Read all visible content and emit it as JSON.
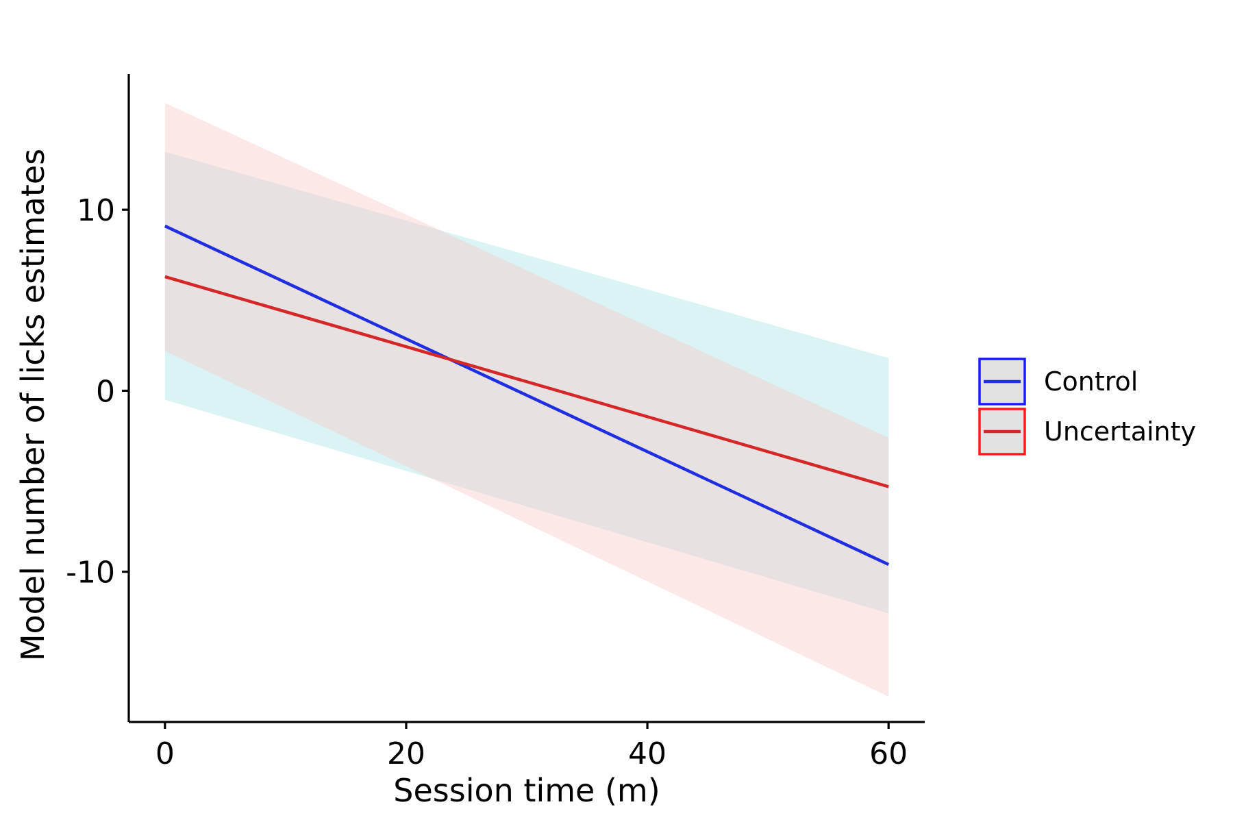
{
  "chart_data": {
    "type": "line",
    "title": "",
    "xlabel": "Session time (m)",
    "ylabel": "Model number of licks estimates",
    "xlim": [
      -3,
      63
    ],
    "ylim": [
      -18.3,
      17.5
    ],
    "xticks": [
      0,
      20,
      40,
      60
    ],
    "yticks": [
      10,
      0,
      -10
    ],
    "xtick_labels": [
      "0",
      "20",
      "40",
      "60"
    ],
    "ytick_labels": [
      "10",
      "0",
      "-10"
    ],
    "grid": false,
    "legend_position": "right",
    "series": [
      {
        "name": "Control",
        "color": "#1f2ee0",
        "band_color": "#a8e3e6",
        "x": [
          0,
          60
        ],
        "y": [
          9.1,
          -9.6
        ],
        "ci_lower": [
          -0.5,
          -12.3
        ],
        "ci_upper": [
          13.2,
          1.8
        ]
      },
      {
        "name": "Uncertainty",
        "color": "#d62728",
        "band_color": "#fbc8c8",
        "x": [
          0,
          60
        ],
        "y": [
          6.3,
          -5.3
        ],
        "ci_lower": [
          2.2,
          -16.9
        ],
        "ci_upper": [
          15.9,
          -2.6
        ]
      }
    ]
  }
}
